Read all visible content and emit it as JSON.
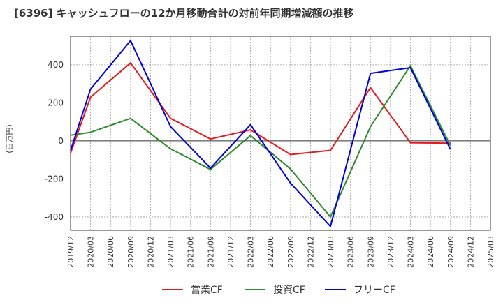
{
  "title": "[6396]  キャッシュフローの12か月移動合計の対前年同期増減額の推移",
  "chart_data": {
    "type": "line",
    "title": "[6396]  キャッシュフローの12か月移動合計の対前年同期増減額の推移",
    "ylabel": "(百万円)",
    "xlabel": "",
    "ylim": [
      -470,
      550
    ],
    "yticks": [
      -400,
      -200,
      0,
      200,
      400
    ],
    "grid": true,
    "legend_position": "bottom",
    "categories": [
      "2019/12",
      "2020/03",
      "2020/06",
      "2020/09",
      "2020/12",
      "2021/03",
      "2021/06",
      "2021/09",
      "2021/12",
      "2022/03",
      "2022/06",
      "2022/09",
      "2022/12",
      "2023/03",
      "2023/06",
      "2023/09",
      "2023/12",
      "2024/03",
      "2024/06",
      "2024/09",
      "2024/12",
      "2025/03"
    ],
    "series": [
      {
        "name": "営業CF",
        "color": "#e41a1c",
        "values": [
          -65,
          230,
          null,
          410,
          null,
          118,
          null,
          10,
          null,
          58,
          null,
          -72,
          null,
          -50,
          null,
          280,
          null,
          -10,
          null,
          -12,
          null,
          null
        ]
      },
      {
        "name": "投資CF",
        "color": "#2e8b2e",
        "values": [
          30,
          45,
          null,
          118,
          null,
          -42,
          null,
          -150,
          null,
          28,
          null,
          -148,
          null,
          -400,
          null,
          75,
          null,
          395,
          null,
          -25,
          null,
          null
        ]
      },
      {
        "name": "フリーCF",
        "color": "#0000dd",
        "values": [
          -50,
          272,
          null,
          527,
          null,
          75,
          null,
          -143,
          null,
          85,
          null,
          -222,
          null,
          -450,
          null,
          355,
          null,
          385,
          null,
          -45,
          null,
          null
        ]
      }
    ]
  }
}
